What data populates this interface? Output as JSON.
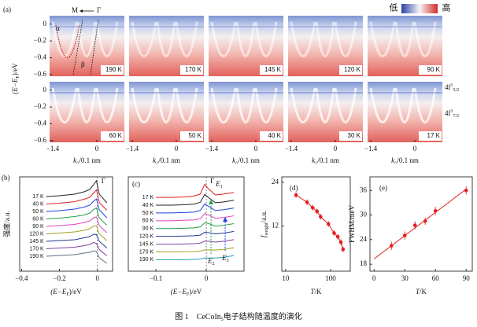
{
  "panel_a": {
    "label": "(a)",
    "direction": {
      "left": "M",
      "right": "Γ"
    },
    "band_labels": [
      "α",
      "β"
    ],
    "colorbar": {
      "low": "低",
      "high": "高"
    },
    "temperatures": [
      "190 K",
      "170 K",
      "145 K",
      "120 K",
      "90 K",
      "60 K",
      "50 K",
      "40 K",
      "30 K",
      "17 K"
    ],
    "ylim": [
      -0.62,
      0.1
    ],
    "yticks": [
      0,
      {
        "value": -0.2,
        "label": "−0.2"
      },
      {
        "value": -0.4,
        "label": "−0.4"
      },
      {
        "value": -0.6,
        "label": "−0.6"
      }
    ],
    "xlim": [
      -1.5,
      0.875
    ],
    "xticks": [
      {
        "value": -1.4,
        "label": "−1.4"
      },
      0
    ],
    "y_label": {
      "open": "(E−E",
      "sub": "F",
      "close": ")/eV"
    },
    "x_label": {
      "main": "k",
      "sub": "//",
      "rest": "/0.1 nm"
    },
    "level_labels": [
      {
        "main": "4f",
        "sup": "1",
        "sub": "5/2"
      },
      {
        "main": "4f",
        "sup": "1",
        "sub": "7/2"
      }
    ]
  },
  "chart_data": [
    {
      "type": "line",
      "panel_label": "(b)",
      "marker_label": "Γ",
      "x_label": {
        "open": "(E−E",
        "sub": "F",
        "close": ")/eV"
      },
      "y_label": "强度/a.u.",
      "x": [
        -0.27,
        -0.2,
        -0.12,
        -0.07,
        -0.04,
        -0.02,
        -0.005,
        0.01,
        0.05
      ],
      "xlim": [
        -0.41,
        0.08
      ],
      "xticks": [
        {
          "value": -0.4,
          "label": "−0.4"
        },
        {
          "value": -0.2,
          "label": "−0.2"
        },
        0
      ],
      "ylim": [
        0,
        12
      ],
      "series": [
        {
          "name": "17 K",
          "color": "#222222",
          "values": [
            9.5,
            9.6,
            9.8,
            10.1,
            10.4,
            11.0,
            11.5,
            9.8,
            8.7
          ]
        },
        {
          "name": "40 K",
          "color": "#e02020",
          "values": [
            8.55,
            8.65,
            8.85,
            9.15,
            9.4,
            9.95,
            10.35,
            8.75,
            7.75
          ]
        },
        {
          "name": "50 K",
          "color": "#2040e0",
          "values": [
            7.6,
            7.7,
            7.9,
            8.15,
            8.4,
            8.9,
            9.2,
            7.8,
            6.8
          ]
        },
        {
          "name": "60 K",
          "color": "#20a040",
          "values": [
            6.65,
            6.75,
            6.95,
            7.15,
            7.4,
            7.85,
            8.05,
            6.75,
            5.85
          ]
        },
        {
          "name": "90 K",
          "color": "#e040c0",
          "values": [
            5.7,
            5.8,
            5.95,
            6.2,
            6.4,
            6.8,
            6.9,
            5.8,
            4.9
          ]
        },
        {
          "name": "120 K",
          "color": "#a0a020",
          "values": [
            4.75,
            4.85,
            5.0,
            5.2,
            5.4,
            5.75,
            5.75,
            4.75,
            3.9
          ]
        },
        {
          "name": "145 K",
          "color": "#203890",
          "values": [
            3.8,
            3.9,
            4.0,
            4.25,
            4.4,
            4.7,
            4.65,
            3.8,
            2.95
          ]
        },
        {
          "name": "170 K",
          "color": "#8040a0",
          "values": [
            2.85,
            2.95,
            3.05,
            3.25,
            3.4,
            3.65,
            3.55,
            2.75,
            1.95
          ]
        },
        {
          "name": "190 K",
          "color": "#607080",
          "values": [
            1.9,
            2.0,
            2.1,
            2.3,
            2.4,
            2.6,
            2.5,
            1.7,
            1.0
          ]
        }
      ]
    },
    {
      "type": "line",
      "panel_label": "(c)",
      "marker_label": "Γ",
      "energy_labels": [
        {
          "main": "E",
          "sub": "1"
        },
        {
          "main": "E",
          "sub": "2"
        },
        {
          "main": "E",
          "sub": "3"
        }
      ],
      "x_label": {
        "open": "(E−E",
        "sub": "F",
        "close": ")/eV"
      },
      "x": [
        -0.1,
        -0.07,
        -0.045,
        -0.025,
        -0.012,
        -0.003,
        0.005,
        0.018,
        0.035,
        0.055
      ],
      "xlim": [
        -0.155,
        0.075
      ],
      "xticks": [
        {
          "value": -0.1,
          "label": "−0.1"
        },
        0
      ],
      "ylim": [
        0,
        11.5
      ],
      "series": [
        {
          "name": "17 K",
          "color": "#e02020",
          "values": [
            9.0,
            9.0,
            9.05,
            9.15,
            9.4,
            10.6,
            10.0,
            9.3,
            9.4,
            9.6
          ]
        },
        {
          "name": "40 K",
          "color": "#222222",
          "values": [
            8.05,
            8.05,
            8.1,
            8.17,
            8.4,
            9.35,
            8.95,
            8.35,
            8.45,
            8.65
          ]
        },
        {
          "name": "50 K",
          "color": "#2040e0",
          "values": [
            7.1,
            7.1,
            7.15,
            7.2,
            7.4,
            8.2,
            7.9,
            7.4,
            7.5,
            7.7
          ]
        },
        {
          "name": "60 K",
          "color": "#e040c0",
          "values": [
            6.15,
            6.15,
            6.2,
            6.25,
            6.4,
            7.05,
            6.85,
            6.45,
            6.55,
            6.75
          ]
        },
        {
          "name": "90 K",
          "color": "#20a040",
          "values": [
            5.2,
            5.2,
            5.23,
            5.28,
            5.4,
            5.9,
            5.8,
            5.5,
            5.6,
            5.8
          ]
        },
        {
          "name": "120 K",
          "color": "#203890",
          "values": [
            4.25,
            4.25,
            4.28,
            4.32,
            4.4,
            4.75,
            4.7,
            4.55,
            4.65,
            4.85
          ]
        },
        {
          "name": "145 K",
          "color": "#8040a0",
          "values": [
            3.3,
            3.3,
            3.32,
            3.36,
            3.42,
            3.65,
            3.65,
            3.55,
            3.65,
            3.85
          ]
        },
        {
          "name": "170 K",
          "color": "#a0a020",
          "values": [
            2.35,
            2.35,
            2.37,
            2.4,
            2.45,
            2.6,
            2.6,
            2.57,
            2.67,
            2.85
          ]
        },
        {
          "name": "190 K",
          "color": "#20a0b0",
          "values": [
            1.4,
            1.4,
            1.4,
            1.45,
            1.5,
            1.6,
            1.6,
            1.6,
            1.7,
            1.9
          ]
        }
      ]
    },
    {
      "type": "scatter",
      "panel_label": "(d)",
      "x_scale": "log",
      "line": true,
      "color": "#e02020",
      "y_label": {
        "main": "f",
        "sub": "weight",
        "rest": "/a.u."
      },
      "x_label": {
        "main": "T",
        "rest": "/K"
      },
      "x": [
        17,
        30,
        40,
        50,
        60,
        90,
        120,
        145,
        170,
        190
      ],
      "values": [
        20.5,
        18.5,
        17,
        16,
        14.5,
        12.5,
        10,
        9,
        7.5,
        5.5
      ],
      "errors": [
        0.8,
        0.8,
        0.8,
        0.8,
        0.8,
        0.8,
        0.8,
        0.8,
        0.8,
        0.8
      ],
      "xlim": [
        8.2,
        275
      ],
      "xticks": [
        10,
        100
      ],
      "ylim": [
        -0.5,
        25.5
      ],
      "yticks": [
        12,
        24
      ]
    },
    {
      "type": "scatter",
      "panel_label": "(e)",
      "color": "#e02020",
      "y_label": "FWHM/meV",
      "x_label": {
        "main": "T",
        "rest": "/K"
      },
      "x": [
        17,
        30,
        40,
        50,
        60,
        90
      ],
      "values": [
        22.5,
        25,
        27.5,
        28.5,
        31,
        36
      ],
      "errors": [
        1,
        1,
        1,
        0.9,
        1,
        1
      ],
      "fit": {
        "x": [
          0,
          90
        ],
        "values": [
          19.3,
          36.3
        ]
      },
      "xlim": [
        -4,
        96
      ],
      "xticks": [
        0,
        30,
        60,
        90
      ],
      "ylim": [
        16.3,
        39.3
      ],
      "yticks": [
        18,
        24,
        30,
        36
      ]
    }
  ],
  "caption": {
    "figure": "图 1",
    "text": "CeCoIn",
    "sub": "5",
    "rest": "电子结构随温度的演化"
  }
}
